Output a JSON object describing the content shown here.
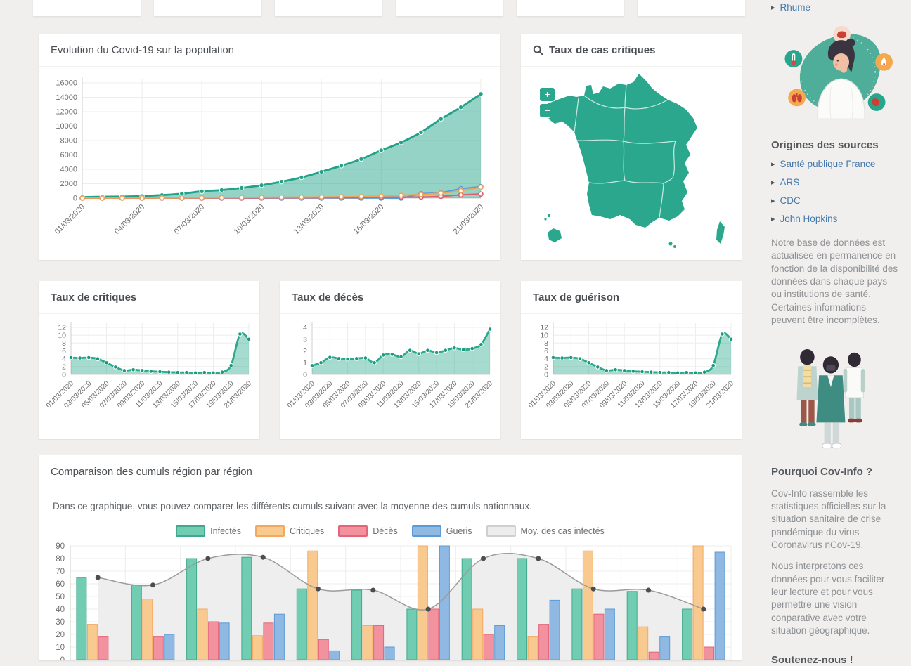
{
  "top_cards": {
    "count": 6
  },
  "panels": {
    "evolution": {
      "title": "Evolution du Covid-19 sur la population"
    },
    "map": {
      "title": "Taux de cas critiques",
      "zoom_in_label": "+",
      "zoom_out_label": "−"
    },
    "critiques": {
      "title": "Taux de critiques"
    },
    "deces": {
      "title": "Taux de décès"
    },
    "guerison": {
      "title": "Taux de guérison"
    },
    "comparaison": {
      "title": "Comparaison des cumuls région par région",
      "description": "Dans ce graphique, vous pouvez comparer les différents cumuls suivant avec la moyenne des cumuls nationnaux."
    }
  },
  "sidebar": {
    "top_link": "Rhume",
    "sources_heading": "Origines des sources",
    "source_links": [
      "Santé publique France",
      "ARS",
      "CDC",
      "John Hopkins"
    ],
    "sources_note": "Notre base de données est actualisée en permanence en fonction de la disponibilité des données dans chaque pays ou institutions de santé. Certaines informations peuvent être incomplètes.",
    "why_heading": "Pourquoi Cov-Info ?",
    "why_p1": "Cov-Info rassemble les statistiques officielles sur la situation sanitaire de crise pandémique du virus Coronavirus nCov-19.",
    "why_p2": "Nous interpretons ces données pour vous faciliter leur lecture et pour vous permettre une vision conparative avec votre situation géographique.",
    "support_heading": "Soutenez-nous !"
  },
  "colors": {
    "accent_teal": "#2aa78c",
    "link_blue": "#4579ac",
    "orange": "#f0a358",
    "red": "#e4657a",
    "blue": "#5b9bd5",
    "moy_gray": "#9b9b9b",
    "page_bg": "#f0efed"
  },
  "chart_data": [
    {
      "id": "evolution",
      "type": "area",
      "title": "Evolution du Covid-19 sur la population",
      "x": [
        "01/03/2020",
        "02/03/2020",
        "03/03/2020",
        "04/03/2020",
        "05/03/2020",
        "06/03/2020",
        "07/03/2020",
        "08/03/2020",
        "09/03/2020",
        "10/03/2020",
        "11/03/2020",
        "12/03/2020",
        "13/03/2020",
        "14/03/2020",
        "15/03/2020",
        "16/03/2020",
        "17/03/2020",
        "18/03/2020",
        "19/03/2020",
        "20/03/2020",
        "21/03/2020"
      ],
      "x_tick_labels": [
        "01/03/2020",
        "04/03/2020",
        "07/03/2020",
        "10/03/2020",
        "13/03/2020",
        "16/03/2020",
        "21/03/2020"
      ],
      "x_tick_indices": [
        0,
        3,
        6,
        9,
        12,
        15,
        20
      ],
      "ylim": [
        0,
        16000
      ],
      "yticks": [
        0,
        2000,
        4000,
        6000,
        8000,
        10000,
        12000,
        14000,
        16000
      ],
      "grid": true,
      "legend_position": "none",
      "series": [
        {
          "name": "Infectés",
          "color": "#1fa287",
          "fill": "rgba(42,167,140,0.5)",
          "values": [
            130,
            191,
            212,
            285,
            423,
            613,
            949,
            1126,
            1412,
            1784,
            2281,
            2876,
            3661,
            4499,
            5423,
            6633,
            7730,
            9134,
            10995,
            12612,
            14459
          ]
        },
        {
          "name": "Gueris",
          "color": "#5b9bd5",
          "values": [
            9,
            12,
            12,
            12,
            12,
            12,
            12,
            12,
            12,
            12,
            12,
            12,
            12,
            12,
            12,
            12,
            12,
            602,
            752,
            1295,
            1587
          ]
        },
        {
          "name": "Décès",
          "color": "#dd5f6e",
          "values": [
            2,
            3,
            4,
            4,
            6,
            9,
            11,
            19,
            19,
            33,
            48,
            48,
            61,
            79,
            91,
            127,
            148,
            148,
            243,
            450,
            562
          ]
        },
        {
          "name": "Critiques",
          "color": "#f0a358",
          "values": [
            9,
            11,
            15,
            23,
            29,
            39,
            45,
            66,
            86,
            105,
            129,
            140,
            158,
            183,
            211,
            300,
            400,
            498,
            699,
            1002,
            1525
          ]
        }
      ]
    },
    {
      "id": "taux_critiques",
      "type": "area",
      "title": "Taux de critiques",
      "x": [
        "01/03/2020",
        "02/03/2020",
        "03/03/2020",
        "04/03/2020",
        "05/03/2020",
        "06/03/2020",
        "07/03/2020",
        "08/03/2020",
        "09/03/2020",
        "10/03/2020",
        "11/03/2020",
        "12/03/2020",
        "13/03/2020",
        "14/03/2020",
        "15/03/2020",
        "16/03/2020",
        "17/03/2020",
        "18/03/2020",
        "19/03/2020",
        "20/03/2020",
        "21/03/2020"
      ],
      "x_tick_indices": [
        0,
        2,
        4,
        6,
        8,
        10,
        12,
        14,
        16,
        18,
        20
      ],
      "ylim": [
        0,
        12
      ],
      "yticks": [
        0,
        2,
        4,
        6,
        8,
        10,
        12
      ],
      "grid": true,
      "series": [
        {
          "name": "Taux de critiques (%)",
          "color": "#2aa98d",
          "fill": "rgba(42,169,141,0.42)",
          "dot_color": "#179a7e",
          "values": [
            4.3,
            4.2,
            4.3,
            4.0,
            3.0,
            1.9,
            1.0,
            1.2,
            1.0,
            0.8,
            0.7,
            0.6,
            0.5,
            0.5,
            0.4,
            0.5,
            0.4,
            0.6,
            2.3,
            10.3,
            9.0
          ]
        }
      ]
    },
    {
      "id": "taux_deces",
      "type": "area",
      "title": "Taux de décès",
      "x": [
        "01/03/2020",
        "02/03/2020",
        "03/03/2020",
        "04/03/2020",
        "05/03/2020",
        "06/03/2020",
        "07/03/2020",
        "08/03/2020",
        "09/03/2020",
        "10/03/2020",
        "11/03/2020",
        "12/03/2020",
        "13/03/2020",
        "14/03/2020",
        "15/03/2020",
        "16/03/2020",
        "17/03/2020",
        "18/03/2020",
        "19/03/2020",
        "20/03/2020",
        "21/03/2020"
      ],
      "x_tick_indices": [
        0,
        2,
        4,
        6,
        8,
        10,
        12,
        14,
        16,
        18,
        20
      ],
      "ylim": [
        0,
        4
      ],
      "yticks": [
        0,
        1,
        2,
        3,
        4
      ],
      "grid": true,
      "series": [
        {
          "name": "Taux de décès (%)",
          "color": "#2aa98d",
          "fill": "rgba(42,169,141,0.42)",
          "dot_color": "#179a7e",
          "values": [
            0.75,
            1.0,
            1.45,
            1.35,
            1.3,
            1.35,
            1.4,
            1.0,
            1.65,
            1.7,
            1.5,
            2.05,
            1.75,
            2.05,
            1.85,
            2.05,
            2.25,
            2.1,
            2.2,
            2.55,
            3.85
          ]
        }
      ]
    },
    {
      "id": "taux_guerison",
      "type": "area",
      "title": "Taux de guérison",
      "x": [
        "01/03/2020",
        "02/03/2020",
        "03/03/2020",
        "04/03/2020",
        "05/03/2020",
        "06/03/2020",
        "07/03/2020",
        "08/03/2020",
        "09/03/2020",
        "10/03/2020",
        "11/03/2020",
        "12/03/2020",
        "13/03/2020",
        "14/03/2020",
        "15/03/2020",
        "16/03/2020",
        "17/03/2020",
        "18/03/2020",
        "19/03/2020",
        "20/03/2020",
        "21/03/2020"
      ],
      "x_tick_indices": [
        0,
        2,
        4,
        6,
        8,
        10,
        12,
        14,
        16,
        18,
        20
      ],
      "ylim": [
        0,
        12
      ],
      "yticks": [
        0,
        2,
        4,
        6,
        8,
        10,
        12
      ],
      "grid": true,
      "series": [
        {
          "name": "Taux de guérison (%)",
          "color": "#2aa98d",
          "fill": "rgba(42,169,141,0.42)",
          "dot_color": "#179a7e",
          "values": [
            4.3,
            4.2,
            4.3,
            4.0,
            3.0,
            1.9,
            1.0,
            1.2,
            1.0,
            0.8,
            0.7,
            0.6,
            0.5,
            0.5,
            0.4,
            0.5,
            0.4,
            0.6,
            2.3,
            10.3,
            9.0
          ]
        }
      ]
    },
    {
      "id": "comparaison",
      "type": "bar",
      "title": "Comparaison des cumuls région par région",
      "ylim": [
        0,
        90
      ],
      "yticks": [
        0,
        10,
        20,
        30,
        40,
        50,
        60,
        70,
        80,
        90
      ],
      "grid": true,
      "legend_position": "top-center",
      "legend": [
        "Infectés",
        "Critiques",
        "Décès",
        "Gueris",
        "Moy. des cas infectés"
      ],
      "series": [
        {
          "name": "Infectés",
          "color": "#3fa88d",
          "fill": "#70cdb2",
          "values": [
            65,
            59,
            80,
            81,
            56,
            55,
            40,
            80,
            80,
            56,
            54,
            40
          ]
        },
        {
          "name": "Critiques",
          "color": "#f2a860",
          "fill": "#f9ca90",
          "values": [
            28,
            48,
            40,
            19,
            86,
            27,
            90,
            40,
            18,
            86,
            26,
            90
          ]
        },
        {
          "name": "Décès",
          "color": "#e4657a",
          "fill": "#f2929f",
          "values": [
            18,
            18,
            30,
            29,
            16,
            27,
            40,
            20,
            28,
            36,
            6,
            10
          ]
        },
        {
          "name": "Gueris",
          "color": "#5b9bd5",
          "fill": "#8fb9e2",
          "values": [
            0,
            20,
            29,
            36,
            7,
            10,
            90,
            27,
            47,
            40,
            18,
            85
          ]
        }
      ],
      "line_series": {
        "name": "Moy. des cas infectés",
        "color": "#cfcfcf",
        "fill": "#ededed",
        "line_color": "#9b9b9b",
        "dot_color": "#4d4d4d",
        "values": [
          65,
          59,
          80,
          81,
          56,
          55,
          40,
          80,
          80,
          56,
          55,
          40
        ]
      }
    }
  ]
}
